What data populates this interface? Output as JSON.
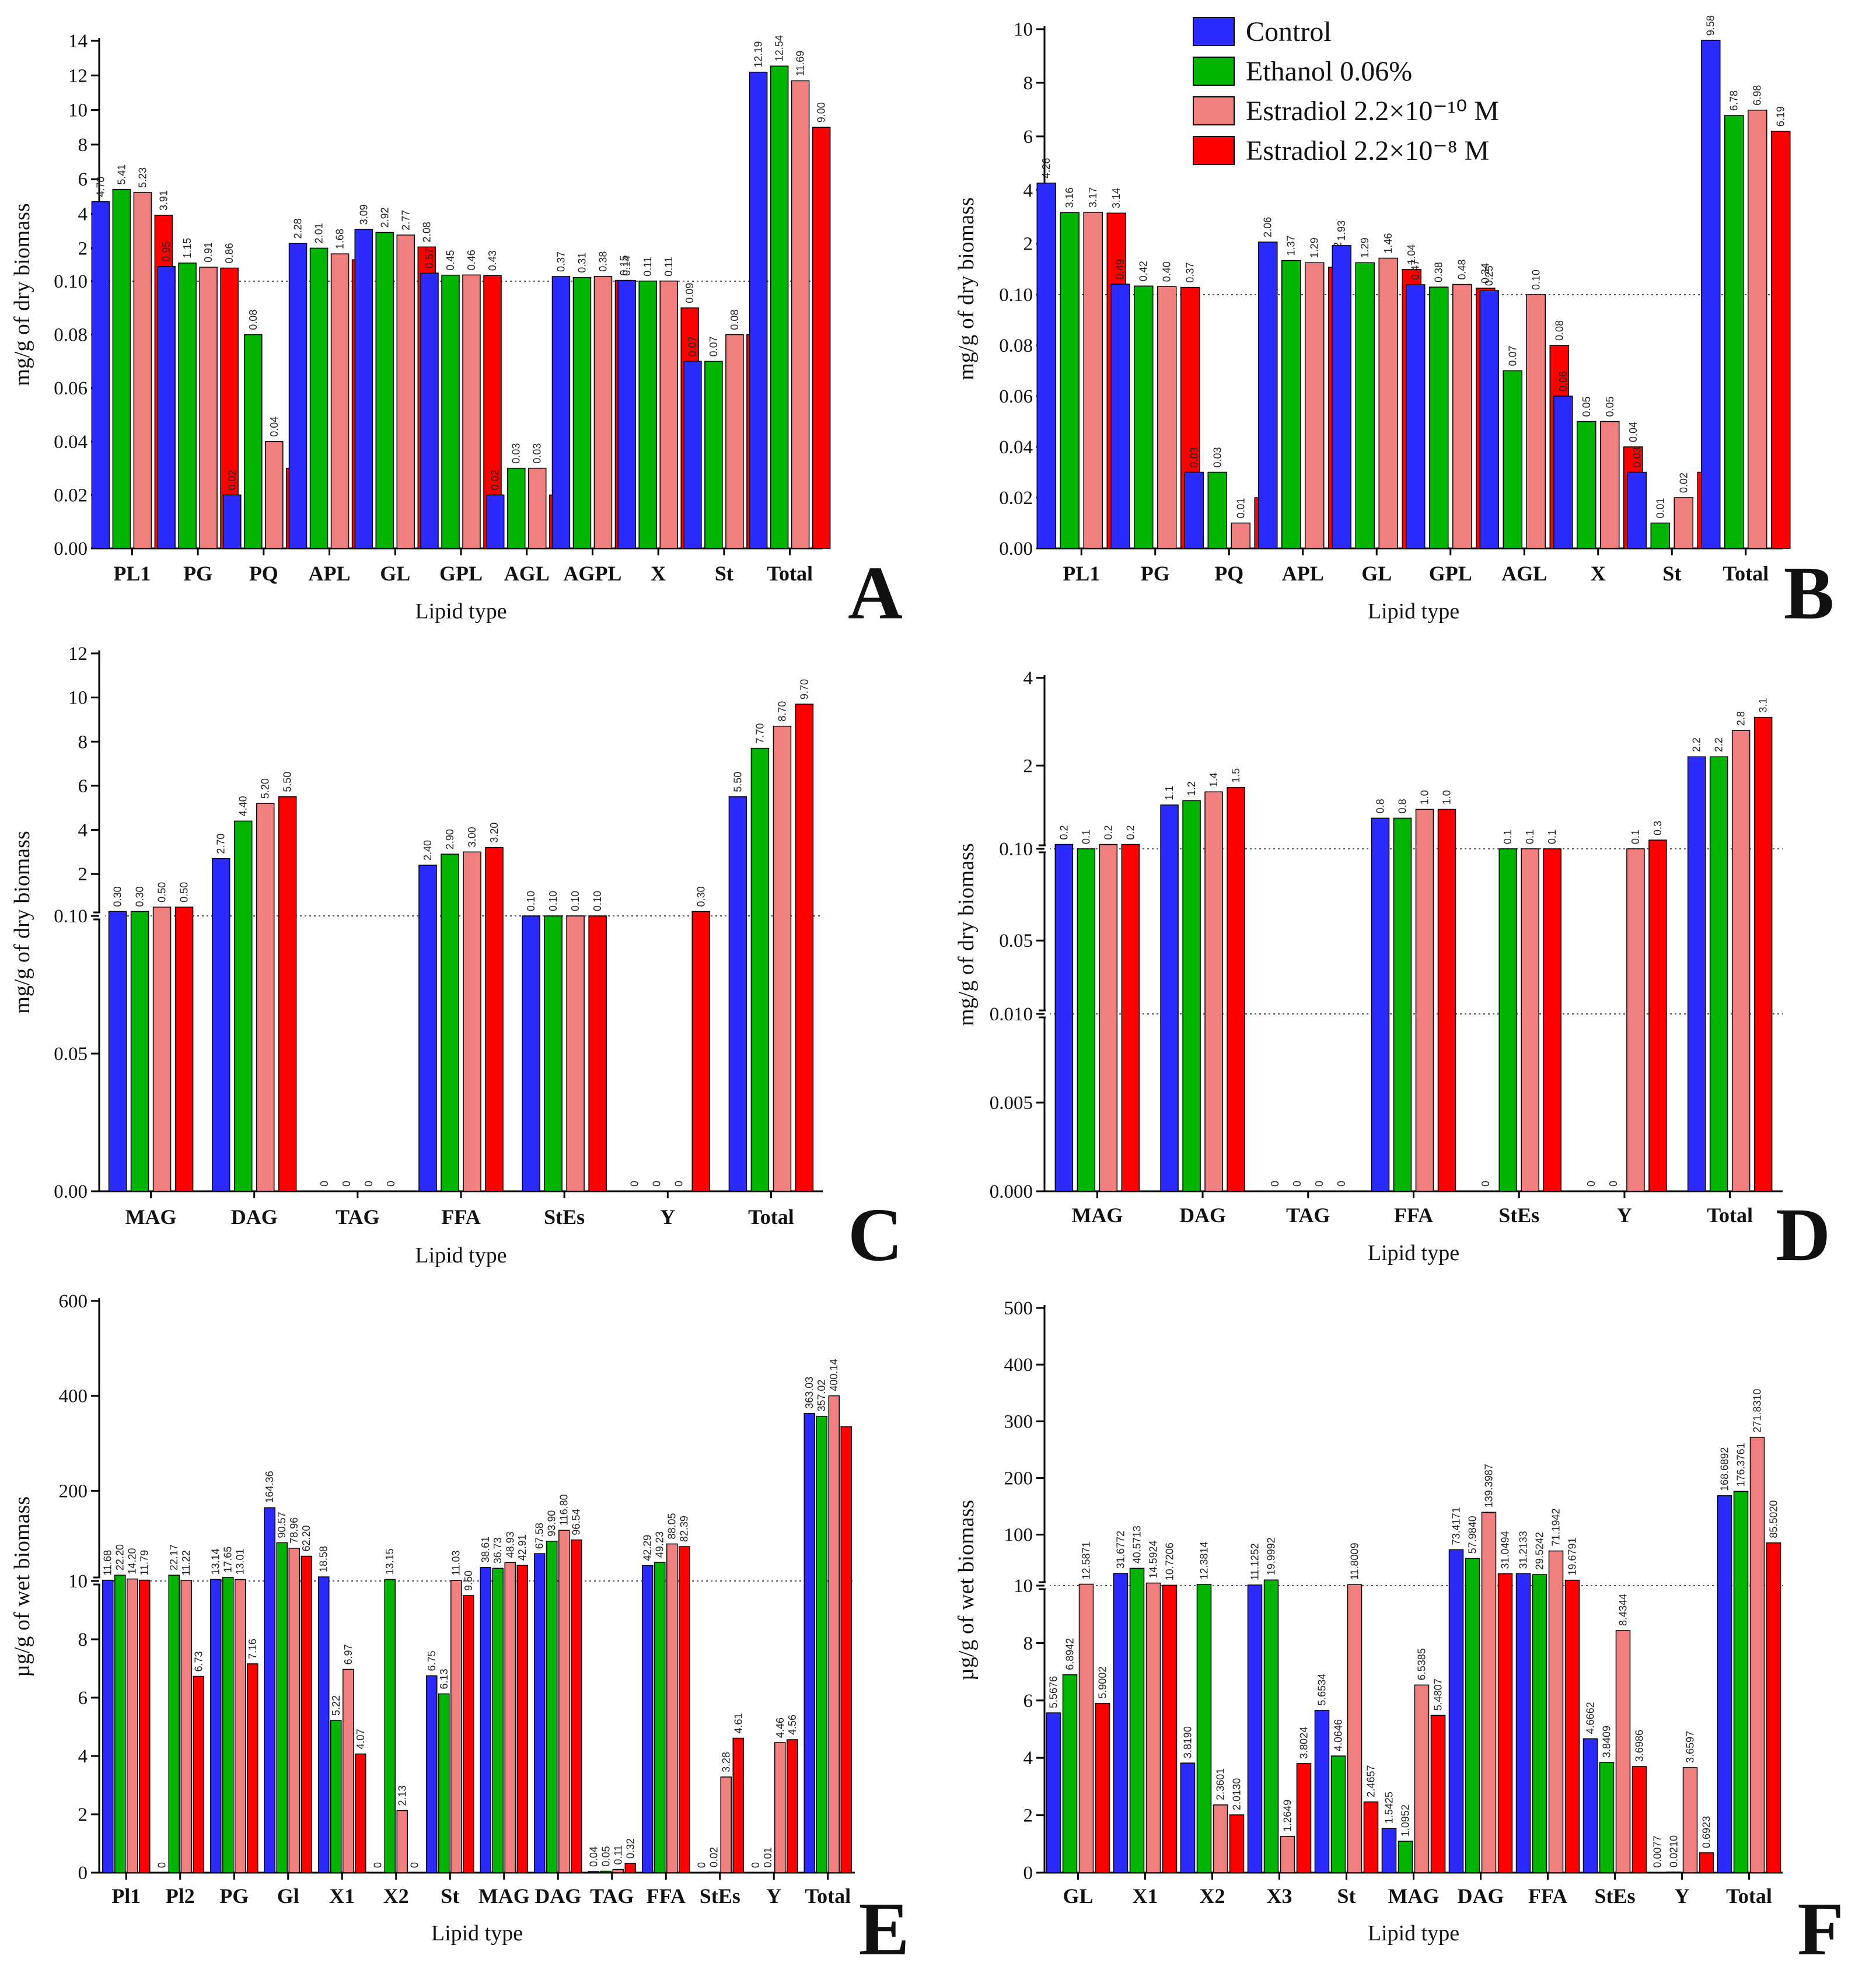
{
  "legend": {
    "entries": [
      {
        "label": "Control",
        "color": "#2b2bff"
      },
      {
        "label": "Ethanol 0.06%",
        "color": "#00b400"
      },
      {
        "label": "Estradiol 2.2×10⁻¹⁰ M",
        "color": "#f08080"
      },
      {
        "label": "Estradiol 2.2×10⁻⁸ M",
        "color": "#ff0000"
      }
    ]
  },
  "chart_data": [
    {
      "panel": "A",
      "type": "bar",
      "ylabel": "mg/g of dry biomass",
      "xlabel": "Lipid type",
      "categories": [
        "PL1",
        "PG",
        "PQ",
        "APL",
        "GL",
        "GPL",
        "AGL",
        "AGPL",
        "X",
        "St",
        "Total"
      ],
      "axis": {
        "lower": [
          0,
          0.1
        ],
        "lower_ticks": [
          "0.00",
          "0.02",
          "0.04",
          "0.06",
          "0.08",
          "0.10"
        ],
        "upper": [
          0.1,
          14
        ],
        "upper_ticks": [
          "2",
          "4",
          "6",
          "8",
          "10",
          "12",
          "14"
        ]
      },
      "series": [
        {
          "name": "Control",
          "values": [
            4.7,
            0.95,
            0.02,
            2.28,
            3.09,
            0.57,
            0.02,
            0.37,
            0.14,
            0.07,
            12.19
          ],
          "labels": [
            "4.70",
            "0.95",
            "0.02",
            "2.28",
            "3.09",
            "0.57",
            "0.02",
            "0.37",
            "0.14",
            "0.07",
            "12.19"
          ]
        },
        {
          "name": "Ethanol 0.06%",
          "values": [
            5.41,
            1.15,
            0.08,
            2.01,
            2.92,
            0.45,
            0.03,
            0.31,
            0.11,
            0.07,
            12.54
          ],
          "labels": [
            "5.41",
            "1.15",
            "0.08",
            "2.01",
            "2.92",
            "0.45",
            "0.03",
            "0.31",
            "0.11",
            "0.07",
            "12.54"
          ]
        },
        {
          "name": "Estradiol 2.2×10⁻¹⁰ M",
          "values": [
            5.23,
            0.91,
            0.04,
            1.68,
            2.77,
            0.46,
            0.03,
            0.38,
            0.11,
            0.08,
            11.69
          ],
          "labels": [
            "5.23",
            "0.91",
            "0.04",
            "1.68",
            "2.77",
            "0.46",
            "0.03",
            "0.38",
            "0.11",
            "0.08",
            "11.69"
          ]
        },
        {
          "name": "Estradiol 2.2×10⁻⁸ M",
          "values": [
            3.91,
            0.86,
            0.03,
            1.34,
            2.08,
            0.43,
            0.02,
            0.15,
            0.09,
            0.08,
            9.0
          ],
          "labels": [
            "3.91",
            "0.86",
            "0.03",
            "1.34",
            "2.08",
            "0.43",
            "0.02",
            "0.15",
            "0.09",
            "0.08",
            "9.00"
          ]
        }
      ]
    },
    {
      "panel": "B",
      "type": "bar",
      "ylabel": "mg/g of dry biomass",
      "xlabel": "Lipid type",
      "categories": [
        "PL1",
        "PG",
        "PQ",
        "APL",
        "GL",
        "GPL",
        "AGL",
        "X",
        "St",
        "Total"
      ],
      "axis": {
        "lower": [
          0,
          0.1
        ],
        "lower_ticks": [
          "0.00",
          "0.02",
          "0.04",
          "0.06",
          "0.08",
          "0.10"
        ],
        "upper": [
          0.1,
          10
        ],
        "upper_ticks": [
          "2",
          "4",
          "6",
          "8",
          "10"
        ]
      },
      "series": [
        {
          "name": "Control",
          "values": [
            4.26,
            0.49,
            0.03,
            2.06,
            1.93,
            0.47,
            0.25,
            0.06,
            0.03,
            9.58
          ],
          "labels": [
            "4.26",
            "0.49",
            "0.03",
            "2.06",
            "1.93",
            "0.47",
            "0.25",
            "0.06",
            "0.03",
            "9.58"
          ]
        },
        {
          "name": "Ethanol 0.06%",
          "values": [
            3.16,
            0.42,
            0.03,
            1.37,
            1.29,
            0.38,
            0.07,
            0.05,
            0.01,
            6.78
          ],
          "labels": [
            "3.16",
            "0.42",
            "0.03",
            "1.37",
            "1.29",
            "0.38",
            "0.07",
            "0.05",
            "0.01",
            "6.78"
          ]
        },
        {
          "name": "Estradiol 2.2×10⁻¹⁰ M",
          "values": [
            3.17,
            0.4,
            0.01,
            1.29,
            1.46,
            0.48,
            0.1,
            0.05,
            0.02,
            6.98
          ],
          "labels": [
            "3.17",
            "0.40",
            "0.01",
            "1.29",
            "1.46",
            "0.48",
            "0.10",
            "0.05",
            "0.02",
            "6.98"
          ]
        },
        {
          "name": "Estradiol 2.2×10⁻⁸ M",
          "values": [
            3.14,
            0.37,
            0.02,
            1.12,
            1.04,
            0.34,
            0.08,
            0.04,
            0.03,
            6.19
          ],
          "labels": [
            "3.14",
            "0.37",
            "0.02",
            "1.12",
            "1.04",
            "0.34",
            "0.08",
            "0.04",
            "0.03",
            "6.19"
          ]
        }
      ]
    },
    {
      "panel": "C",
      "type": "bar",
      "ylabel": "mg/g of dry biomass",
      "xlabel": "Lipid type",
      "categories": [
        "MAG",
        "DAG",
        "TAG",
        "FFA",
        "StEs",
        "Y",
        "Total"
      ],
      "axis": {
        "lower": [
          0,
          0.1
        ],
        "lower_ticks": [
          "0.00",
          "0.05",
          "0.10"
        ],
        "upper": [
          0.1,
          12
        ],
        "upper_ticks": [
          "2",
          "4",
          "6",
          "8",
          "10",
          "12"
        ]
      },
      "series": [
        {
          "name": "Control",
          "values": [
            0.3,
            2.7,
            0,
            2.4,
            0.1,
            0,
            5.5
          ],
          "labels": [
            "0.30",
            "2.70",
            "0",
            "2.40",
            "0.10",
            "0",
            "5.50"
          ]
        },
        {
          "name": "Ethanol 0.06%",
          "values": [
            0.3,
            4.4,
            0,
            2.9,
            0.1,
            0,
            7.7
          ],
          "labels": [
            "0.30",
            "4.40",
            "0",
            "2.90",
            "0.10",
            "0",
            "7.70"
          ]
        },
        {
          "name": "Estradiol 2.2×10⁻¹⁰ M",
          "values": [
            0.5,
            5.2,
            0,
            3.0,
            0.1,
            0,
            8.7
          ],
          "labels": [
            "0.50",
            "5.20",
            "0",
            "3.00",
            "0.10",
            "0",
            "8.70"
          ]
        },
        {
          "name": "Estradiol 2.2×10⁻⁸ M",
          "values": [
            0.5,
            5.5,
            0,
            3.2,
            0.1,
            0.3,
            9.7
          ],
          "labels": [
            "0.50",
            "5.50",
            "0",
            "3.20",
            "0.10",
            "0.30",
            "9.70"
          ]
        }
      ]
    },
    {
      "panel": "D",
      "type": "bar",
      "ylabel": "mg/g of dry biomass",
      "xlabel": "Lipid type",
      "categories": [
        "MAG",
        "DAG",
        "TAG",
        "FFA",
        "StEs",
        "Y",
        "Total"
      ],
      "axis": {
        "lower": [
          0,
          0.01
        ],
        "lower_ticks": [
          "0.000",
          "0.005",
          "0.010"
        ],
        "middle": [
          0.01,
          0.1
        ],
        "middle_ticks": [
          "0.05",
          "0.10"
        ],
        "upper": [
          0.1,
          4
        ],
        "upper_ticks": [
          "2",
          "4"
        ]
      },
      "series": [
        {
          "name": "Control",
          "values": [
            0.2,
            1.1,
            0,
            0.8,
            0,
            0,
            2.2
          ],
          "labels": [
            "0.2",
            "1.1",
            "0",
            "0.8",
            "0",
            "0",
            "2.2"
          ]
        },
        {
          "name": "Ethanol 0.06%",
          "values": [
            0.1,
            1.2,
            0,
            0.8,
            0.1,
            0,
            2.2
          ],
          "labels": [
            "0.1",
            "1.2",
            "0",
            "0.8",
            "0.1",
            "0",
            "2.2"
          ]
        },
        {
          "name": "Estradiol 2.2×10⁻¹⁰ M",
          "values": [
            0.2,
            1.4,
            0,
            1.0,
            0.1,
            0.1,
            2.8
          ],
          "labels": [
            "0.2",
            "1.4",
            "0",
            "1.0",
            "0.1",
            "0.1",
            "2.8"
          ]
        },
        {
          "name": "Estradiol 2.2×10⁻⁸ M",
          "values": [
            0.2,
            1.5,
            0,
            1.0,
            0.1,
            0.3,
            3.1
          ],
          "labels": [
            "0.2",
            "1.5",
            "0",
            "1.0",
            "0.1",
            "0.3",
            "3.1"
          ]
        }
      ]
    },
    {
      "panel": "E",
      "type": "bar",
      "ylabel": "µg/g of wet biomass",
      "xlabel": "Lipid type",
      "categories": [
        "Pl1",
        "Pl2",
        "PG",
        "Gl",
        "X1",
        "X2",
        "St",
        "MAG",
        "DAG",
        "TAG",
        "FFA",
        "StEs",
        "Y",
        "Total"
      ],
      "axis": {
        "lower": [
          0,
          10
        ],
        "lower_ticks": [
          "0",
          "2",
          "4",
          "6",
          "8",
          "10"
        ],
        "upper": [
          10,
          600
        ],
        "upper_ticks": [
          "200",
          "400",
          "600"
        ]
      },
      "series": [
        {
          "name": "Control",
          "values": [
            11.68,
            0,
            13.14,
            164.36,
            18.58,
            0,
            6.75,
            38.61,
            67.58,
            0.04,
            42.29,
            0,
            0,
            363.03
          ],
          "labels": [
            "11.68",
            "0",
            "13.14",
            "164.36",
            "18.58",
            "0",
            "6.75",
            "38.61",
            "67.58",
            "0.04",
            "42.29",
            "0",
            "0",
            "363.03"
          ]
        },
        {
          "name": "Ethanol 0.06%",
          "values": [
            22.2,
            22.17,
            17.65,
            90.57,
            5.22,
            13.15,
            6.13,
            36.73,
            93.9,
            0.05,
            49.23,
            0.02,
            0.01,
            357.02
          ],
          "labels": [
            "22.20",
            "22.17",
            "17.65",
            "90.57",
            "5.22",
            "13.15",
            "6.13",
            "36.73",
            "93.90",
            "0.05",
            "49.23",
            "0.02",
            "0.01",
            "357.02"
          ]
        },
        {
          "name": "Estradiol 2.2×10⁻¹⁰ M",
          "values": [
            14.2,
            11.22,
            13.01,
            78.96,
            6.97,
            2.13,
            11.03,
            48.93,
            116.8,
            0.11,
            88.05,
            3.28,
            4.46,
            400.14
          ],
          "labels": [
            "14.20",
            "11.22",
            "13.01",
            "78.96",
            "6.97",
            "2.13",
            "11.03",
            "48.93",
            "116.80",
            "0.11",
            "88.05",
            "3.28",
            "4.46",
            "400.14"
          ]
        },
        {
          "name": "Estradiol 2.2×10⁻⁸ M",
          "values": [
            11.79,
            6.73,
            7.16,
            62.2,
            4.07,
            0,
            9.5,
            42.91,
            96.54,
            0.32,
            82.39,
            4.61,
            4.56,
            335
          ],
          "labels": [
            "11.79",
            "6.73",
            "7.16",
            "62.20",
            "4.07",
            "0",
            "9.50",
            "42.91",
            "96.54",
            "0.32",
            "82.39",
            "4.61",
            "4.56",
            ""
          ]
        }
      ]
    },
    {
      "panel": "F",
      "type": "bar",
      "ylabel": "µg/g of wet biomass",
      "xlabel": "Lipid type",
      "categories": [
        "GL",
        "X1",
        "X2",
        "X3",
        "St",
        "MAG",
        "DAG",
        "FFA",
        "StEs",
        "Y",
        "Total"
      ],
      "axis": {
        "lower": [
          0,
          10
        ],
        "lower_ticks": [
          "0",
          "2",
          "4",
          "6",
          "8",
          "10"
        ],
        "upper": [
          10,
          500
        ],
        "upper_ticks": [
          "100",
          "200",
          "300",
          "400",
          "500"
        ]
      },
      "series": [
        {
          "name": "Control",
          "values": [
            5.5676,
            31.6772,
            3.819,
            11.1252,
            5.6534,
            1.5425,
            73.4171,
            31.2133,
            4.6662,
            0.0077,
            168.6892
          ],
          "labels": [
            "5.5676",
            "31.6772",
            "3.8190",
            "11.1252",
            "5.6534",
            "1.5425",
            "73.4171",
            "31.2133",
            "4.6662",
            "0.0077",
            "168.6892"
          ]
        },
        {
          "name": "Ethanol 0.06%",
          "values": [
            6.8942,
            40.5713,
            12.3814,
            19.9992,
            4.0646,
            1.0952,
            57.984,
            29.5242,
            3.8409,
            0.021,
            176.3761
          ],
          "labels": [
            "6.8942",
            "40.5713",
            "12.3814",
            "19.9992",
            "4.0646",
            "1.0952",
            "57.9840",
            "29.5242",
            "3.8409",
            "0.0210",
            "176.3761"
          ]
        },
        {
          "name": "Estradiol 2.2×10⁻¹⁰ M",
          "values": [
            12.5871,
            14.5924,
            2.3601,
            1.2649,
            11.8009,
            6.5385,
            139.3987,
            71.1942,
            8.4344,
            3.6597,
            271.831
          ],
          "labels": [
            "12.5871",
            "14.5924",
            "2.3601",
            "1.2649",
            "11.8009",
            "6.5385",
            "139.3987",
            "71.1942",
            "8.4344",
            "3.6597",
            "271.8310"
          ]
        },
        {
          "name": "Estradiol 2.2×10⁻⁸ M",
          "values": [
            5.9002,
            10.7206,
            2.013,
            3.8024,
            2.4657,
            5.4807,
            31.0494,
            19.6791,
            3.6986,
            0.6923,
            85.502
          ],
          "labels": [
            "5.9002",
            "10.7206",
            "2.0130",
            "3.8024",
            "2.4657",
            "5.4807",
            "31.0494",
            "19.6791",
            "3.6986",
            "0.6923",
            "85.5020"
          ]
        }
      ]
    }
  ]
}
